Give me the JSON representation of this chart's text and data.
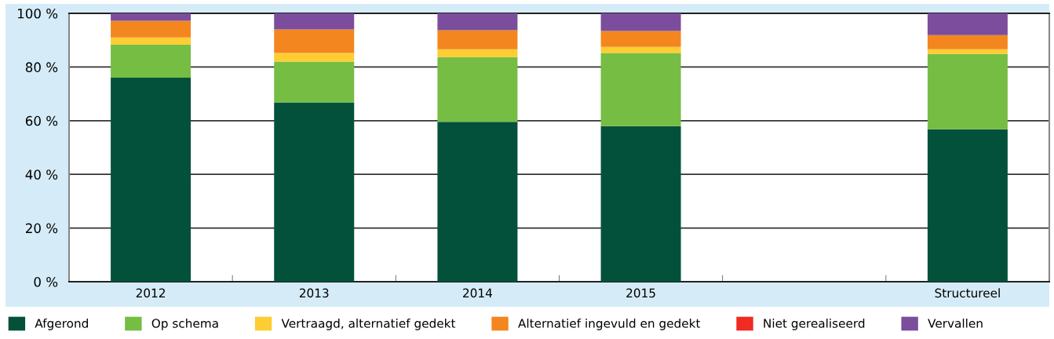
{
  "chart_data": {
    "type": "bar",
    "stacked": true,
    "categories": [
      "2012",
      "2013",
      "2014",
      "2015",
      null,
      "Structureel"
    ],
    "series": [
      {
        "name": "Afgerond",
        "color": "#03513a",
        "values": [
          76,
          66.8,
          59.6,
          58,
          null,
          56.8
        ]
      },
      {
        "name": "Op schema",
        "color": "#76bd43",
        "values": [
          12.4,
          15.2,
          24.1,
          27.2,
          null,
          28.1
        ]
      },
      {
        "name": "Vertraagd, alternatief gedekt",
        "color": "#fdcd32",
        "values": [
          2.6,
          3.2,
          2.9,
          2.3,
          null,
          1.7
        ]
      },
      {
        "name": "Alternatief ingevuld en gedekt",
        "color": "#f3861f",
        "values": [
          6.2,
          8.8,
          7.1,
          5.9,
          null,
          5.3
        ]
      },
      {
        "name": "Niet gerealiseerd",
        "color": "#ef2b24",
        "values": [
          0,
          0,
          0,
          0,
          null,
          0
        ]
      },
      {
        "name": "Vervallen",
        "color": "#7b4d9c",
        "values": [
          2.8,
          6.0,
          6.3,
          6.6,
          null,
          8.1
        ]
      }
    ],
    "ylim": [
      0,
      100
    ],
    "yticks": [
      {
        "value": 0,
        "label": "0 %"
      },
      {
        "value": 20,
        "label": "20 %"
      },
      {
        "value": 40,
        "label": "40 %"
      },
      {
        "value": 60,
        "label": "60 %"
      },
      {
        "value": 80,
        "label": "80 %"
      },
      {
        "value": 100,
        "label": "100 %"
      }
    ],
    "grid": "y",
    "legend": "bottom"
  }
}
